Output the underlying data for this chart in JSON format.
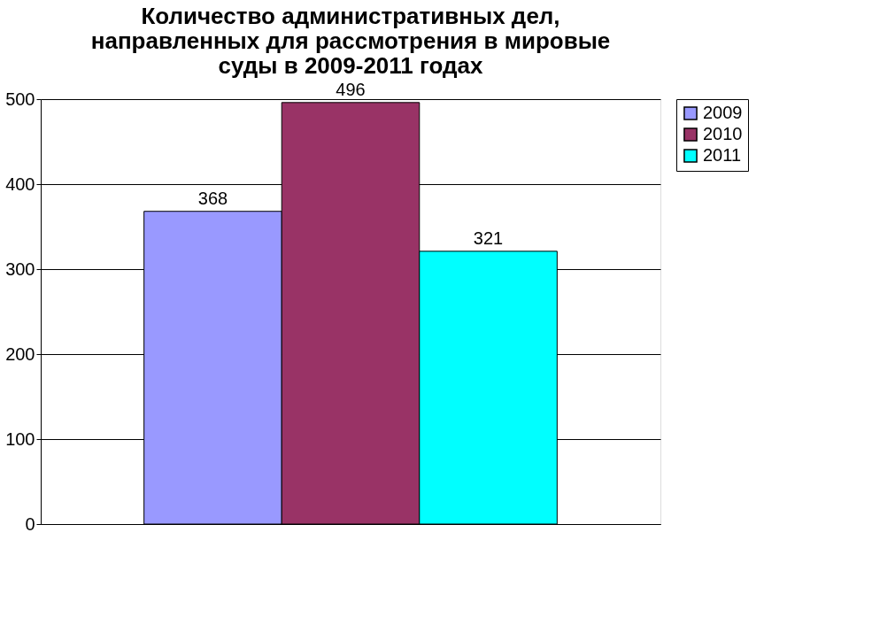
{
  "chart_data": {
    "type": "bar",
    "title": "Количество административных дел, направленных для рассмотрения в мировые суды в 2009-2011 годах",
    "categories": [
      null
    ],
    "series": [
      {
        "name": "2009",
        "color": "#9999ff",
        "values": [
          368
        ]
      },
      {
        "name": "2010",
        "color": "#993366",
        "values": [
          496
        ]
      },
      {
        "name": "2011",
        "color": "#00ffff",
        "values": [
          321
        ]
      }
    ],
    "ylim": [
      0,
      500
    ],
    "yticks": [
      0,
      100,
      200,
      300,
      400,
      500
    ],
    "grid": "y",
    "legend": "right",
    "data_labels": true,
    "tick_labels": "y"
  }
}
